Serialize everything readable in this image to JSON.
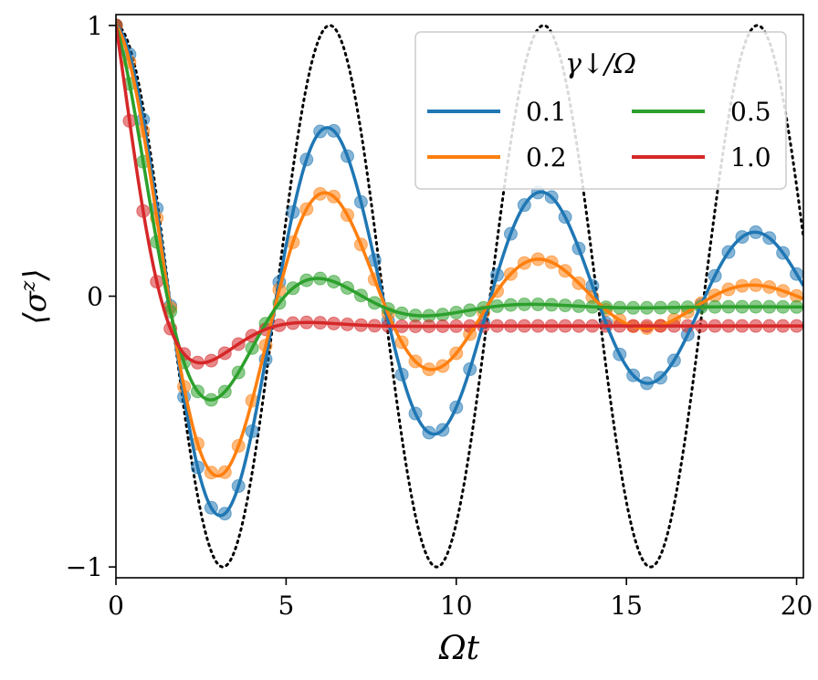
{
  "chart_data": {
    "type": "line",
    "xlabel": "Ωt",
    "ylabel": "⟨σ^z⟩",
    "ylabel_main": "⟨σ",
    "ylabel_sup": "z",
    "ylabel_close": "⟩",
    "xlim": [
      0,
      20.2
    ],
    "ylim": [
      -1.04,
      1.04
    ],
    "x_ticks": [
      0,
      5,
      10,
      15,
      20
    ],
    "x_tick_labels": [
      "0",
      "5",
      "10",
      "15",
      "20"
    ],
    "y_ticks": [
      -1,
      0,
      1
    ],
    "y_tick_labels": [
      "−1",
      "0",
      "1"
    ],
    "legend": {
      "title": "γ↓/Ω",
      "location": "upper right",
      "entries": [
        "0.1",
        "0.2",
        "0.5",
        "1.0"
      ]
    },
    "reference": {
      "name": "undamped",
      "style": "dotted",
      "color": "#000000",
      "formula": "cos(Ωt)"
    },
    "series": [
      {
        "name": "0.1",
        "gamma": 0.1,
        "color": "#1f77b4",
        "steady_state": -0.01,
        "decay": 0.075
      },
      {
        "name": "0.2",
        "gamma": 0.2,
        "color": "#ff7f0e",
        "steady_state": -0.02,
        "decay": 0.15
      },
      {
        "name": "0.5",
        "gamma": 0.5,
        "color": "#2ca02c",
        "steady_state": -0.04,
        "decay": 0.375
      },
      {
        "name": "1.0",
        "gamma": 1.0,
        "color": "#d62728",
        "steady_state": -0.11,
        "decay": 0.75
      }
    ],
    "markers": {
      "style": "circle",
      "opacity": 0.55,
      "x_step": 0.4
    }
  }
}
